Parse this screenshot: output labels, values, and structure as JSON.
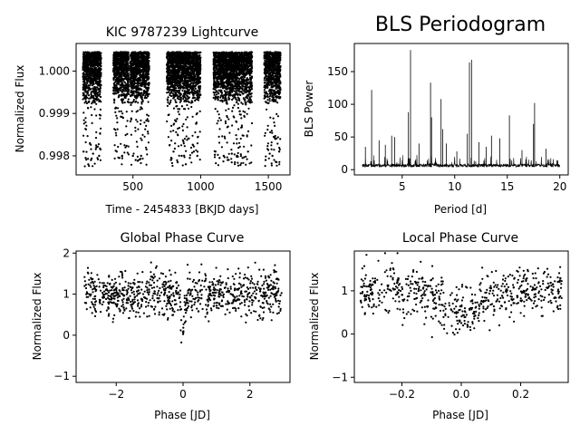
{
  "chart_data": [
    {
      "id": "lightcurve",
      "type": "scatter",
      "title": "KIC 9787239 Lightcurve",
      "xlabel": "Time - 2454833 [BKJD days]",
      "ylabel": "Normalized Flux",
      "xlim": [
        80,
        1660
      ],
      "ylim": [
        0.99755,
        1.00065
      ],
      "xticks": [
        500,
        1000,
        1500
      ],
      "xtick_labels": [
        "500",
        "1000",
        "1500"
      ],
      "yticks": [
        0.998,
        0.999,
        1.0
      ],
      "ytick_labels": [
        "0.998",
        "0.999",
        "1.000"
      ],
      "grid": false,
      "marker_color": "#000000",
      "segments": [
        [
          130,
          265
        ],
        [
          355,
          470
        ],
        [
          480,
          620
        ],
        [
          750,
          1000
        ],
        [
          1095,
          1380
        ],
        [
          1470,
          1590
        ]
      ],
      "band": [
        0.9992,
        1.00045
      ],
      "dip_floor": 0.99775,
      "series": [
        {
          "values": [
            [
              135,
              0.9981
            ],
            [
              150,
              0.99795
            ],
            [
              170,
              0.9978
            ],
            [
              190,
              0.9979
            ],
            [
              205,
              0.99805
            ],
            [
              230,
              0.9982
            ],
            [
              250,
              0.998
            ],
            [
              260,
              0.99815
            ],
            [
              380,
              0.9981
            ],
            [
              400,
              0.99795
            ],
            [
              420,
              0.998
            ],
            [
              445,
              0.9982
            ],
            [
              500,
              0.998
            ],
            [
              520,
              0.9979
            ],
            [
              560,
              0.998
            ],
            [
              600,
              0.99815
            ],
            [
              780,
              0.9979
            ],
            [
              800,
              0.9981
            ],
            [
              830,
              0.99785
            ],
            [
              860,
              0.998
            ],
            [
              890,
              0.9978
            ],
            [
              920,
              0.99795
            ],
            [
              950,
              0.9981
            ],
            [
              975,
              0.998
            ],
            [
              1110,
              0.9981
            ],
            [
              1140,
              0.99795
            ],
            [
              1170,
              0.998
            ],
            [
              1200,
              0.9979
            ],
            [
              1230,
              0.99805
            ],
            [
              1270,
              0.998
            ],
            [
              1310,
              0.99795
            ],
            [
              1350,
              0.9981
            ],
            [
              1480,
              0.9979
            ],
            [
              1510,
              0.99805
            ],
            [
              1530,
              0.998
            ],
            [
              1560,
              0.99785
            ],
            [
              1580,
              0.9981
            ]
          ]
        }
      ]
    },
    {
      "id": "periodogram",
      "type": "line",
      "title": "BLS Periodogram",
      "xlabel": "Period [d]",
      "ylabel": "BLS Power",
      "xlim": [
        0.45,
        20.8
      ],
      "ylim": [
        -8,
        193
      ],
      "xticks": [
        5,
        10,
        15,
        20
      ],
      "xtick_labels": [
        "5",
        "10",
        "15",
        "20"
      ],
      "yticks": [
        0,
        50,
        100,
        150
      ],
      "ytick_labels": [
        "0",
        "50",
        "100",
        "150"
      ],
      "grid": false,
      "line_color": "#000000",
      "x_range": [
        1.2,
        20
      ],
      "baseline": 4,
      "peaks": [
        [
          1.5,
          35
        ],
        [
          2.1,
          122
        ],
        [
          2.8,
          45
        ],
        [
          3.4,
          38
        ],
        [
          4.0,
          52
        ],
        [
          4.3,
          50
        ],
        [
          5.6,
          88
        ],
        [
          5.8,
          183
        ],
        [
          6.6,
          40
        ],
        [
          7.7,
          133
        ],
        [
          7.8,
          80
        ],
        [
          8.7,
          108
        ],
        [
          8.85,
          62
        ],
        [
          9.2,
          40
        ],
        [
          10.2,
          28
        ],
        [
          11.2,
          55
        ],
        [
          11.4,
          164
        ],
        [
          11.6,
          168
        ],
        [
          12.3,
          42
        ],
        [
          13.0,
          35
        ],
        [
          13.5,
          52
        ],
        [
          14.3,
          48
        ],
        [
          15.2,
          83
        ],
        [
          16.4,
          30
        ],
        [
          17.5,
          70
        ],
        [
          17.6,
          102
        ],
        [
          18.7,
          32
        ],
        [
          19.8,
          14
        ]
      ]
    },
    {
      "id": "global-phase",
      "type": "scatter",
      "title": "Global Phase Curve",
      "xlabel": "Phase [JD]",
      "ylabel": "Normalized Flux",
      "xlim": [
        -3.2,
        3.2
      ],
      "ylim": [
        -1.15,
        2.05
      ],
      "xticks": [
        -2,
        0,
        2
      ],
      "xtick_labels": [
        "−2",
        "0",
        "2"
      ],
      "yticks": [
        -1,
        0,
        1,
        2
      ],
      "ytick_labels": [
        "−1",
        "0",
        "1",
        "2"
      ],
      "grid": false,
      "marker_color": "#000000",
      "phase_range": [
        -2.95,
        2.95
      ],
      "n_points": 900,
      "dip": {
        "center": 0.0,
        "depth": 1.05,
        "width": 0.07
      }
    },
    {
      "id": "local-phase",
      "type": "scatter",
      "title": "Local Phase Curve",
      "xlabel": "Phase [JD]",
      "ylabel": "Normalized Flux",
      "xlim": [
        -0.36,
        0.36
      ],
      "ylim": [
        -1.12,
        1.92
      ],
      "xticks": [
        -0.2,
        0.0,
        0.2
      ],
      "xtick_labels": [
        "−0.2",
        "0.0",
        "0.2"
      ],
      "yticks": [
        -1,
        0,
        1
      ],
      "ytick_labels": [
        "−1",
        "0",
        "1"
      ],
      "grid": false,
      "marker_color": "#000000",
      "phase_range": [
        -0.34,
        0.34
      ],
      "n_points": 650,
      "dip": {
        "center": 0.0,
        "depth": 0.55,
        "width": 0.08
      }
    }
  ]
}
